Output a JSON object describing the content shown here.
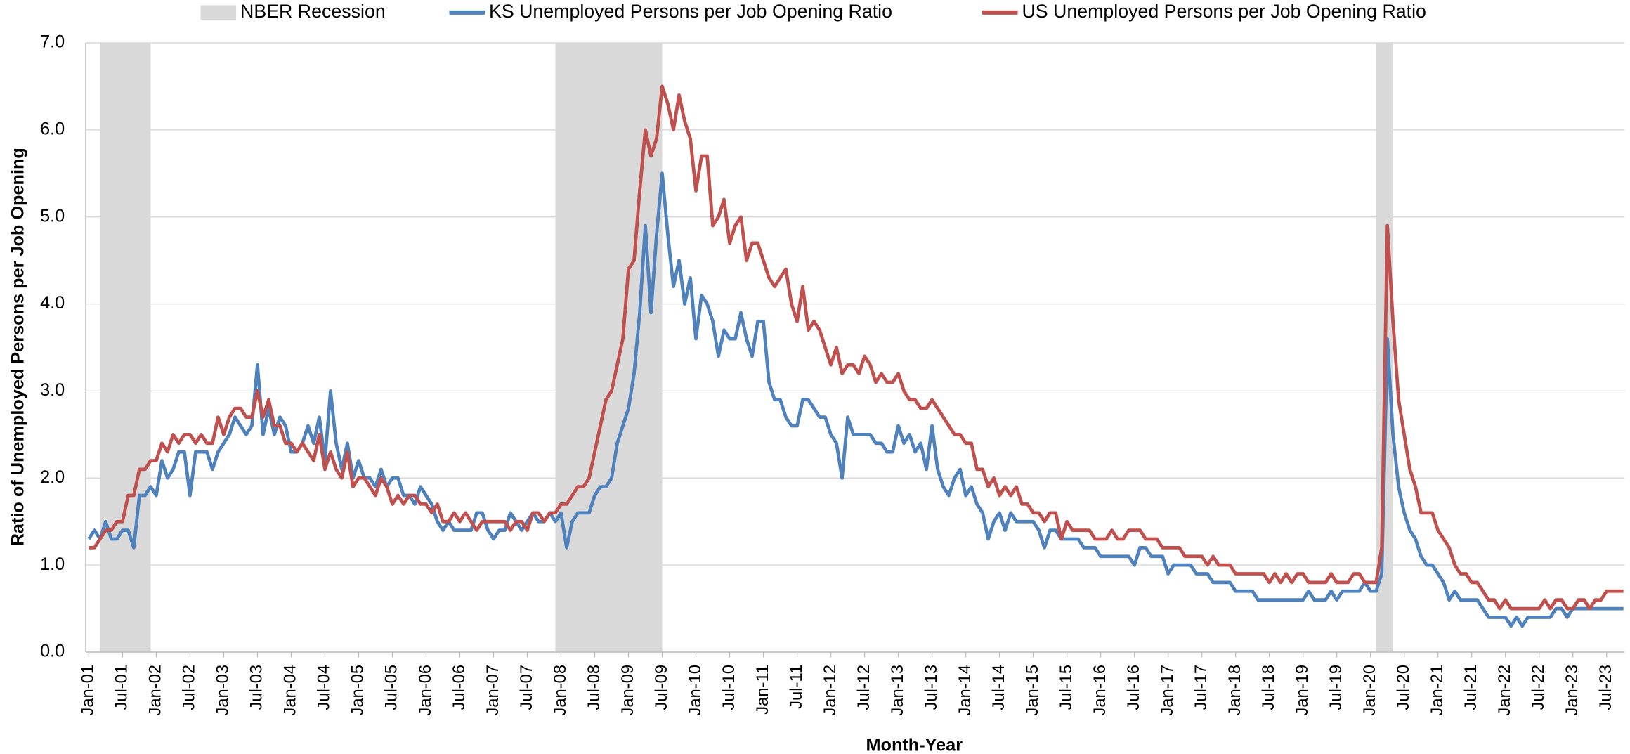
{
  "chart_data": {
    "type": "line",
    "x_label": "Month-Year",
    "y_label": "Ratio of Unemployed Persons per Job Opening",
    "ylim": [
      0,
      7
    ],
    "yticks": [
      {
        "value": 0,
        "label": "0.0"
      },
      {
        "value": 1,
        "label": "1.0"
      },
      {
        "value": 2,
        "label": "2.0"
      },
      {
        "value": 3,
        "label": "3.0"
      },
      {
        "value": 4,
        "label": "4.0"
      },
      {
        "value": 5,
        "label": "5.0"
      },
      {
        "value": 6,
        "label": "6.0"
      },
      {
        "value": 7,
        "label": "7.0"
      }
    ],
    "grid": true,
    "legend": "top",
    "bands": {
      "name": "NBER Recession",
      "color": "#d9d9d9",
      "ranges": [
        [
          2,
          10
        ],
        [
          83,
          101
        ],
        [
          229,
          231
        ]
      ]
    },
    "categories": [
      "Jan-01",
      null,
      null,
      null,
      null,
      null,
      "Jul-01",
      null,
      null,
      null,
      null,
      null,
      "Jan-02",
      null,
      null,
      null,
      null,
      null,
      "Jul-02",
      null,
      null,
      null,
      null,
      null,
      "Jan-03",
      null,
      null,
      null,
      null,
      null,
      "Jul-03",
      null,
      null,
      null,
      null,
      null,
      "Jan-04",
      null,
      null,
      null,
      null,
      null,
      "Jul-04",
      null,
      null,
      null,
      null,
      null,
      "Jan-05",
      null,
      null,
      null,
      null,
      null,
      "Jul-05",
      null,
      null,
      null,
      null,
      null,
      "Jan-06",
      null,
      null,
      null,
      null,
      null,
      "Jul-06",
      null,
      null,
      null,
      null,
      null,
      "Jan-07",
      null,
      null,
      null,
      null,
      null,
      "Jul-07",
      null,
      null,
      null,
      null,
      null,
      "Jan-08",
      null,
      null,
      null,
      null,
      null,
      "Jul-08",
      null,
      null,
      null,
      null,
      null,
      "Jan-09",
      null,
      null,
      null,
      null,
      null,
      "Jul-09",
      null,
      null,
      null,
      null,
      null,
      "Jan-10",
      null,
      null,
      null,
      null,
      null,
      "Jul-10",
      null,
      null,
      null,
      null,
      null,
      "Jan-11",
      null,
      null,
      null,
      null,
      null,
      "Jul-11",
      null,
      null,
      null,
      null,
      null,
      "Jan-12",
      null,
      null,
      null,
      null,
      null,
      "Jul-12",
      null,
      null,
      null,
      null,
      null,
      "Jan-13",
      null,
      null,
      null,
      null,
      null,
      "Jul-13",
      null,
      null,
      null,
      null,
      null,
      "Jan-14",
      null,
      null,
      null,
      null,
      null,
      "Jul-14",
      null,
      null,
      null,
      null,
      null,
      "Jan-15",
      null,
      null,
      null,
      null,
      null,
      "Jul-15",
      null,
      null,
      null,
      null,
      null,
      "Jan-16",
      null,
      null,
      null,
      null,
      null,
      "Jul-16",
      null,
      null,
      null,
      null,
      null,
      "Jan-17",
      null,
      null,
      null,
      null,
      null,
      "Jul-17",
      null,
      null,
      null,
      null,
      null,
      "Jan-18",
      null,
      null,
      null,
      null,
      null,
      "Jul-18",
      null,
      null,
      null,
      null,
      null,
      "Jan-19",
      null,
      null,
      null,
      null,
      null,
      "Jul-19",
      null,
      null,
      null,
      null,
      null,
      "Jan-20",
      null,
      null,
      null,
      null,
      null,
      "Jul-20",
      null,
      null,
      null,
      null,
      null,
      "Jan-21",
      null,
      null,
      null,
      null,
      null,
      "Jul-21",
      null,
      null,
      null,
      null,
      null,
      "Jan-22",
      null,
      null,
      null,
      null,
      null,
      "Jul-22",
      null,
      null,
      null,
      null,
      null,
      "Jan-23",
      null,
      null,
      null,
      null,
      null,
      "Jul-23",
      null,
      null,
      null
    ],
    "series": [
      {
        "name": "KS Unemployed Persons per Job Opening Ratio",
        "color": "#4f81bd",
        "values": [
          1.3,
          1.4,
          1.3,
          1.5,
          1.3,
          1.3,
          1.4,
          1.4,
          1.2,
          1.8,
          1.8,
          1.9,
          1.8,
          2.2,
          2.0,
          2.1,
          2.3,
          2.3,
          1.8,
          2.3,
          2.3,
          2.3,
          2.1,
          2.3,
          2.4,
          2.5,
          2.7,
          2.6,
          2.5,
          2.6,
          3.3,
          2.5,
          2.8,
          2.5,
          2.7,
          2.6,
          2.3,
          2.3,
          2.4,
          2.6,
          2.4,
          2.7,
          2.2,
          3.0,
          2.4,
          2.1,
          2.4,
          2.0,
          2.2,
          2.0,
          2.0,
          1.9,
          2.1,
          1.9,
          2.0,
          2.0,
          1.8,
          1.8,
          1.7,
          1.9,
          1.8,
          1.7,
          1.5,
          1.4,
          1.5,
          1.4,
          1.4,
          1.4,
          1.4,
          1.6,
          1.6,
          1.4,
          1.3,
          1.4,
          1.4,
          1.6,
          1.5,
          1.4,
          1.5,
          1.6,
          1.5,
          1.5,
          1.6,
          1.5,
          1.6,
          1.2,
          1.5,
          1.6,
          1.6,
          1.6,
          1.8,
          1.9,
          1.9,
          2.0,
          2.4,
          2.6,
          2.8,
          3.2,
          3.9,
          4.9,
          3.9,
          4.8,
          5.5,
          4.8,
          4.2,
          4.5,
          4.0,
          4.3,
          3.6,
          4.1,
          4.0,
          3.8,
          3.4,
          3.7,
          3.6,
          3.6,
          3.9,
          3.6,
          3.4,
          3.8,
          3.8,
          3.1,
          2.9,
          2.9,
          2.7,
          2.6,
          2.6,
          2.9,
          2.9,
          2.8,
          2.7,
          2.7,
          2.5,
          2.4,
          2.0,
          2.7,
          2.5,
          2.5,
          2.5,
          2.5,
          2.4,
          2.4,
          2.3,
          2.3,
          2.6,
          2.4,
          2.5,
          2.3,
          2.4,
          2.1,
          2.6,
          2.1,
          1.9,
          1.8,
          2.0,
          2.1,
          1.8,
          1.9,
          1.7,
          1.6,
          1.3,
          1.5,
          1.6,
          1.4,
          1.6,
          1.5,
          1.5,
          1.5,
          1.5,
          1.4,
          1.2,
          1.4,
          1.4,
          1.3,
          1.3,
          1.3,
          1.3,
          1.2,
          1.2,
          1.2,
          1.1,
          1.1,
          1.1,
          1.1,
          1.1,
          1.1,
          1.0,
          1.2,
          1.2,
          1.1,
          1.1,
          1.1,
          0.9,
          1.0,
          1.0,
          1.0,
          1.0,
          0.9,
          0.9,
          0.9,
          0.8,
          0.8,
          0.8,
          0.8,
          0.7,
          0.7,
          0.7,
          0.7,
          0.6,
          0.6,
          0.6,
          0.6,
          0.6,
          0.6,
          0.6,
          0.6,
          0.6,
          0.7,
          0.6,
          0.6,
          0.6,
          0.7,
          0.6,
          0.7,
          0.7,
          0.7,
          0.7,
          0.8,
          0.7,
          0.7,
          0.9,
          3.6,
          2.5,
          1.9,
          1.6,
          1.4,
          1.3,
          1.1,
          1.0,
          1.0,
          0.9,
          0.8,
          0.6,
          0.7,
          0.6,
          0.6,
          0.6,
          0.6,
          0.5,
          0.4,
          0.4,
          0.4,
          0.4,
          0.3,
          0.4,
          0.3,
          0.4,
          0.4,
          0.4,
          0.4,
          0.4,
          0.5,
          0.5,
          0.4,
          0.5,
          0.5,
          0.5,
          0.5,
          0.5,
          0.5,
          0.5,
          0.5,
          0.5,
          0.5
        ]
      },
      {
        "name": "US Unemployed Persons per Job Opening Ratio",
        "color": "#c0504d",
        "values": [
          1.2,
          1.2,
          1.3,
          1.4,
          1.4,
          1.5,
          1.5,
          1.8,
          1.8,
          2.1,
          2.1,
          2.2,
          2.2,
          2.4,
          2.3,
          2.5,
          2.4,
          2.5,
          2.5,
          2.4,
          2.5,
          2.4,
          2.4,
          2.7,
          2.5,
          2.7,
          2.8,
          2.8,
          2.7,
          2.7,
          3.0,
          2.7,
          2.9,
          2.6,
          2.6,
          2.4,
          2.4,
          2.3,
          2.4,
          2.3,
          2.2,
          2.5,
          2.1,
          2.3,
          2.1,
          2.0,
          2.3,
          1.9,
          2.0,
          2.0,
          1.9,
          1.8,
          2.0,
          1.9,
          1.7,
          1.8,
          1.7,
          1.8,
          1.8,
          1.7,
          1.7,
          1.6,
          1.7,
          1.5,
          1.5,
          1.6,
          1.5,
          1.6,
          1.5,
          1.4,
          1.5,
          1.5,
          1.5,
          1.5,
          1.5,
          1.4,
          1.5,
          1.5,
          1.4,
          1.6,
          1.6,
          1.5,
          1.6,
          1.6,
          1.7,
          1.7,
          1.8,
          1.9,
          1.9,
          2.0,
          2.3,
          2.6,
          2.9,
          3.0,
          3.3,
          3.6,
          4.4,
          4.5,
          5.3,
          6.0,
          5.7,
          5.9,
          6.5,
          6.3,
          6.0,
          6.4,
          6.1,
          5.9,
          5.3,
          5.7,
          5.7,
          4.9,
          5.0,
          5.2,
          4.7,
          4.9,
          5.0,
          4.5,
          4.7,
          4.7,
          4.5,
          4.3,
          4.2,
          4.3,
          4.4,
          4.0,
          3.8,
          4.2,
          3.7,
          3.8,
          3.7,
          3.5,
          3.3,
          3.5,
          3.2,
          3.3,
          3.3,
          3.2,
          3.4,
          3.3,
          3.1,
          3.2,
          3.1,
          3.1,
          3.2,
          3.0,
          2.9,
          2.9,
          2.8,
          2.8,
          2.9,
          2.8,
          2.7,
          2.6,
          2.5,
          2.5,
          2.4,
          2.4,
          2.1,
          2.1,
          1.9,
          2.0,
          1.8,
          1.9,
          1.8,
          1.9,
          1.7,
          1.7,
          1.6,
          1.6,
          1.5,
          1.6,
          1.6,
          1.3,
          1.5,
          1.4,
          1.4,
          1.4,
          1.4,
          1.3,
          1.3,
          1.3,
          1.4,
          1.3,
          1.3,
          1.4,
          1.4,
          1.4,
          1.3,
          1.3,
          1.3,
          1.2,
          1.2,
          1.2,
          1.2,
          1.1,
          1.1,
          1.1,
          1.1,
          1.0,
          1.1,
          1.0,
          1.0,
          1.0,
          0.9,
          0.9,
          0.9,
          0.9,
          0.9,
          0.9,
          0.8,
          0.9,
          0.8,
          0.9,
          0.8,
          0.9,
          0.9,
          0.8,
          0.8,
          0.8,
          0.8,
          0.9,
          0.8,
          0.8,
          0.8,
          0.9,
          0.9,
          0.8,
          0.8,
          0.8,
          1.2,
          4.9,
          3.8,
          2.9,
          2.5,
          2.1,
          1.9,
          1.6,
          1.6,
          1.6,
          1.4,
          1.3,
          1.2,
          1.0,
          0.9,
          0.9,
          0.8,
          0.8,
          0.7,
          0.6,
          0.6,
          0.5,
          0.6,
          0.5,
          0.5,
          0.5,
          0.5,
          0.5,
          0.5,
          0.6,
          0.5,
          0.6,
          0.6,
          0.5,
          0.5,
          0.6,
          0.6,
          0.5,
          0.6,
          0.6,
          0.7,
          0.7,
          0.7,
          0.7
        ]
      }
    ]
  }
}
